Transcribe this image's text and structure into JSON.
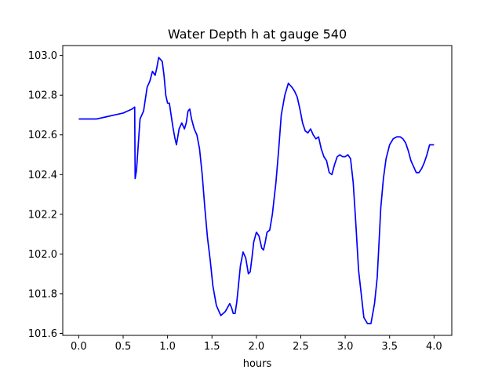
{
  "chart_data": {
    "type": "line",
    "title": "Water Depth h at gauge 540",
    "xlabel": "hours",
    "ylabel": "",
    "xlim": [
      -0.18,
      4.2
    ],
    "ylim": [
      101.59,
      103.05
    ],
    "xticks": [
      "0.0",
      "0.5",
      "1.0",
      "1.5",
      "2.0",
      "2.5",
      "3.0",
      "3.5",
      "4.0"
    ],
    "yticks": [
      "101.6",
      "101.8",
      "102.0",
      "102.2",
      "102.4",
      "102.6",
      "102.8",
      "103.0"
    ],
    "grid": false,
    "series": [
      {
        "color": "#0000ff",
        "x": [
          0.0,
          0.1,
          0.2,
          0.3,
          0.4,
          0.5,
          0.55,
          0.6,
          0.63,
          0.635,
          0.65,
          0.67,
          0.69,
          0.71,
          0.73,
          0.75,
          0.77,
          0.8,
          0.83,
          0.86,
          0.88,
          0.9,
          0.92,
          0.94,
          0.96,
          0.98,
          1.0,
          1.02,
          1.04,
          1.06,
          1.08,
          1.1,
          1.13,
          1.16,
          1.19,
          1.21,
          1.23,
          1.25,
          1.27,
          1.3,
          1.33,
          1.36,
          1.39,
          1.42,
          1.45,
          1.48,
          1.51,
          1.55,
          1.6,
          1.65,
          1.7,
          1.72,
          1.74,
          1.76,
          1.78,
          1.8,
          1.82,
          1.85,
          1.88,
          1.91,
          1.93,
          1.95,
          1.97,
          2.0,
          2.03,
          2.06,
          2.08,
          2.1,
          2.12,
          2.15,
          2.18,
          2.22,
          2.25,
          2.28,
          2.32,
          2.36,
          2.4,
          2.43,
          2.46,
          2.49,
          2.52,
          2.55,
          2.58,
          2.61,
          2.64,
          2.67,
          2.7,
          2.73,
          2.76,
          2.79,
          2.82,
          2.85,
          2.88,
          2.91,
          2.94,
          2.97,
          3.0,
          3.03,
          3.06,
          3.09,
          3.12,
          3.15,
          3.18,
          3.21,
          3.25,
          3.29,
          3.33,
          3.36,
          3.38,
          3.4,
          3.43,
          3.46,
          3.5,
          3.54,
          3.58,
          3.62,
          3.65,
          3.68,
          3.71,
          3.74,
          3.77,
          3.8,
          3.83,
          3.86,
          3.89,
          3.92,
          3.95,
          3.98,
          4.0
        ],
        "y": [
          102.68,
          102.68,
          102.68,
          102.69,
          102.7,
          102.71,
          102.72,
          102.73,
          102.74,
          102.38,
          102.42,
          102.55,
          102.68,
          102.7,
          102.72,
          102.78,
          102.84,
          102.87,
          102.92,
          102.9,
          102.94,
          102.99,
          102.98,
          102.97,
          102.9,
          102.8,
          102.76,
          102.76,
          102.7,
          102.64,
          102.59,
          102.55,
          102.63,
          102.66,
          102.63,
          102.66,
          102.72,
          102.73,
          102.68,
          102.63,
          102.6,
          102.53,
          102.4,
          102.23,
          102.08,
          101.97,
          101.84,
          101.74,
          101.69,
          101.71,
          101.75,
          101.73,
          101.7,
          101.7,
          101.76,
          101.85,
          101.94,
          102.01,
          101.98,
          101.9,
          101.91,
          101.98,
          102.06,
          102.11,
          102.09,
          102.03,
          102.02,
          102.06,
          102.11,
          102.12,
          102.2,
          102.36,
          102.52,
          102.7,
          102.8,
          102.86,
          102.84,
          102.82,
          102.79,
          102.73,
          102.66,
          102.62,
          102.61,
          102.63,
          102.6,
          102.58,
          102.59,
          102.53,
          102.49,
          102.47,
          102.41,
          102.4,
          102.45,
          102.49,
          102.5,
          102.49,
          102.49,
          102.5,
          102.48,
          102.36,
          102.15,
          101.92,
          101.8,
          101.68,
          101.65,
          101.65,
          101.75,
          101.88,
          102.05,
          102.23,
          102.38,
          102.48,
          102.55,
          102.58,
          102.59,
          102.59,
          102.58,
          102.56,
          102.52,
          102.47,
          102.44,
          102.41,
          102.41,
          102.43,
          102.46,
          102.5,
          102.55,
          102.55,
          102.55
        ]
      }
    ]
  }
}
